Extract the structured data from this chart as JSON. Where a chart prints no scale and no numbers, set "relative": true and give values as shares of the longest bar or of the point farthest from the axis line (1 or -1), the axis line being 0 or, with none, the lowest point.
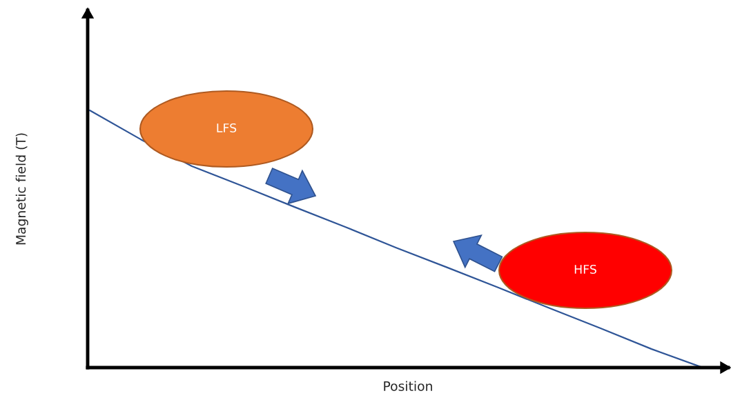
{
  "chart_data": {
    "type": "line",
    "xlabel": "Position",
    "ylabel": "Magnetic field (T)",
    "categories": [
      null,
      null,
      null,
      null,
      null,
      null,
      null,
      null,
      null,
      null,
      null,
      null,
      null
    ],
    "relative": true,
    "tick_labels": false,
    "marker": "none",
    "line_style": "solid",
    "series": [
      {
        "color": "#2f5597",
        "values": [
          1.0,
          0.887,
          0.783,
          0.705,
          0.625,
          0.547,
          0.466,
          0.389,
          0.311,
          0.231,
          0.153,
          0.072,
          0
        ]
      }
    ],
    "annotations": [
      "LFS",
      "HFS"
    ]
  }
}
